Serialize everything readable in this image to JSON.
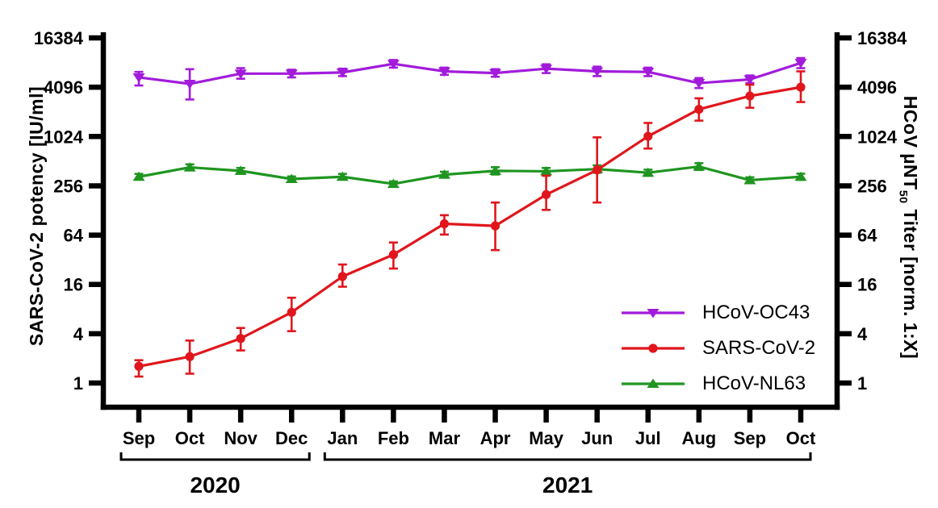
{
  "figure": {
    "left_axis_title": "SARS-CoV-2 potency [IU/ml]",
    "right_axis_title": {
      "pre": "HCoV µNT",
      "sub": "50",
      "post": " Titer [norm. 1:X]"
    }
  },
  "chart_data": {
    "type": "line",
    "title": "",
    "x_categories": [
      "Sep",
      "Oct",
      "Nov",
      "Dec",
      "Jan",
      "Feb",
      "Mar",
      "Apr",
      "May",
      "Jun",
      "Jul",
      "Aug",
      "Sep",
      "Oct"
    ],
    "x_year_groups": [
      {
        "label": "2020",
        "from": 0,
        "to": 3
      },
      {
        "label": "2021",
        "from": 4,
        "to": 13
      }
    ],
    "y_scale": "log2",
    "y_ticks": [
      1,
      4,
      16,
      64,
      256,
      1024,
      4096,
      16384
    ],
    "y_range": [
      0.5,
      16384
    ],
    "grid": false,
    "legend_position": "inside-right",
    "left_axis_label": "SARS-CoV-2 potency [IU/ml]",
    "right_axis_label": "HCoV µNT50 Titer [norm. 1:X]",
    "axis_color": "#000000",
    "series": [
      {
        "name": "HCoV-OC43",
        "color": "#A21BDB",
        "marker": "triangle-down",
        "values": [
          5400,
          4500,
          6000,
          6000,
          6200,
          7900,
          6400,
          6100,
          6900,
          6400,
          6300,
          4600,
          5100,
          8100
        ],
        "err_low": [
          4300,
          2900,
          5200,
          5400,
          5600,
          7100,
          5800,
          5500,
          6100,
          5600,
          5600,
          4000,
          4600,
          7000
        ],
        "err_high": [
          6300,
          6800,
          7000,
          6700,
          6900,
          8800,
          7100,
          6800,
          7800,
          7300,
          7100,
          5300,
          5700,
          9300
        ]
      },
      {
        "name": "SARS-CoV-2",
        "color": "#E0161C",
        "marker": "circle",
        "values": [
          1.6,
          2.1,
          3.5,
          7.3,
          20,
          37,
          88,
          83,
          200,
          400,
          1030,
          2200,
          3200,
          4100
        ],
        "err_low": [
          1.2,
          1.3,
          2.5,
          4.3,
          15,
          25,
          65,
          42,
          130,
          160,
          730,
          1600,
          2300,
          2700
        ],
        "err_high": [
          1.9,
          3.3,
          4.7,
          11,
          28,
          52,
          112,
          160,
          340,
          1000,
          1500,
          3000,
          4400,
          6400
        ]
      },
      {
        "name": "HCoV-NL63",
        "color": "#1F9520",
        "marker": "triangle-up",
        "values": [
          330,
          430,
          390,
          310,
          330,
          270,
          350,
          390,
          385,
          410,
          370,
          440,
          300,
          330
        ],
        "err_low": [
          305,
          395,
          360,
          290,
          305,
          252,
          322,
          352,
          350,
          370,
          340,
          400,
          278,
          303
        ],
        "err_high": [
          358,
          468,
          423,
          333,
          358,
          290,
          380,
          432,
          423,
          455,
          403,
          484,
          325,
          360
        ]
      }
    ]
  }
}
